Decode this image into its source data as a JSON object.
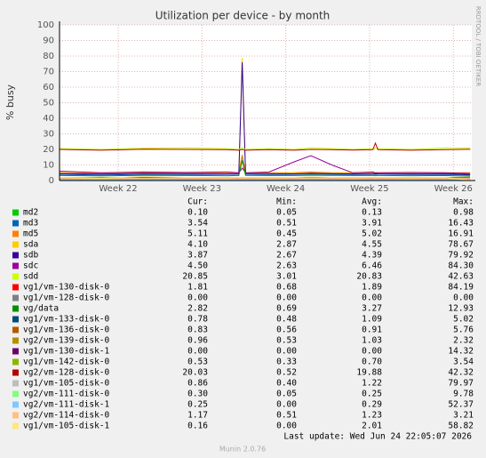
{
  "chart_data": {
    "type": "line",
    "title": "Utilization per device - by month",
    "y_label": "% busy",
    "side_text": "RRDTOOL / TOBI OETIKER",
    "footer": "Last update: Wed Jun 24 22:05:07 2026",
    "version": "Munin 2.0.76",
    "stat_headers": [
      "Cur:",
      "Min:",
      "Avg:",
      "Max:"
    ],
    "grid": true,
    "xlim": [
      21.3,
      26.22
    ],
    "xticks": [
      {
        "value": 22,
        "label": "Week 22"
      },
      {
        "value": 23,
        "label": "Week 23"
      },
      {
        "value": 24,
        "label": "Week 24"
      },
      {
        "value": 25,
        "label": "Week 25"
      },
      {
        "value": 26,
        "label": "Week 26"
      }
    ],
    "ylim": [
      0,
      100
    ],
    "yticks": [
      0,
      10,
      20,
      30,
      40,
      50,
      60,
      70,
      80,
      90,
      100
    ],
    "x": [
      21.3,
      21.8,
      22.3,
      22.8,
      23.3,
      23.44,
      23.48,
      23.52,
      23.8,
      24.1,
      24.3,
      24.55,
      24.8,
      25.04,
      25.07,
      25.1,
      25.5,
      25.9,
      26.2
    ],
    "series": [
      {
        "name": "md2",
        "color": "#00cc00",
        "stats": [
          "0.10",
          "0.05",
          "0.13",
          "0.98"
        ],
        "values": [
          0.1,
          0.1,
          0.15,
          0.1,
          0.1,
          0.1,
          0.9,
          0.1,
          0.1,
          0.15,
          0.2,
          0.1,
          0.1,
          0.1,
          0.15,
          0.1,
          0.1,
          0.1,
          0.1
        ]
      },
      {
        "name": "md3",
        "color": "#0066b3",
        "stats": [
          "3.54",
          "0.51",
          "3.91",
          "16.43"
        ],
        "values": [
          4,
          3.5,
          4,
          3.8,
          4,
          4,
          16,
          4,
          3.8,
          4,
          4.2,
          4,
          3.9,
          4,
          4,
          4,
          3.8,
          3.9,
          3.5
        ]
      },
      {
        "name": "md5",
        "color": "#ff8000",
        "stats": [
          "5.11",
          "0.45",
          "5.02",
          "16.91"
        ],
        "values": [
          5,
          4.8,
          5.2,
          5,
          5,
          5,
          16.5,
          5,
          4.9,
          5.1,
          5.5,
          5,
          5,
          5.2,
          5,
          5,
          4.9,
          5,
          5.1
        ]
      },
      {
        "name": "sda",
        "color": "#ffcc00",
        "stats": [
          "4.10",
          "2.87",
          "4.55",
          "78.67"
        ],
        "values": [
          4.5,
          4.3,
          4.6,
          4.5,
          4.4,
          4.5,
          78.67,
          4.6,
          4.5,
          4.5,
          4.8,
          4.6,
          4.5,
          4.5,
          4.6,
          4.5,
          4.4,
          4.5,
          4.1
        ]
      },
      {
        "name": "sdb",
        "color": "#330099",
        "stats": [
          "3.87",
          "2.67",
          "4.39",
          "79.92"
        ],
        "values": [
          4.4,
          4.2,
          4.5,
          4.4,
          4.3,
          4.4,
          76,
          4.5,
          4.4,
          4.3,
          4.6,
          4.4,
          4.3,
          4.4,
          4.5,
          4.4,
          4.3,
          4.4,
          3.87
        ]
      },
      {
        "name": "sdc",
        "color": "#990099",
        "stats": [
          "4.50",
          "2.63",
          "6.46",
          "84.30"
        ],
        "values": [
          6,
          5,
          5.5,
          5.2,
          5.5,
          5,
          8,
          5,
          5.5,
          12,
          16,
          10,
          5,
          5.5,
          5,
          5,
          5.2,
          5,
          4.5
        ]
      },
      {
        "name": "sdd",
        "color": "#ccff00",
        "stats": [
          "20.85",
          "3.01",
          "20.83",
          "42.63"
        ],
        "values": [
          20.5,
          20,
          20.8,
          21,
          20.5,
          20,
          21,
          20,
          20.5,
          20,
          21,
          20.5,
          20,
          20.5,
          21,
          20.5,
          20,
          21,
          20.85
        ]
      },
      {
        "name": "vg1/vm-130-disk-0",
        "color": "#ff0000",
        "stats": [
          "1.81",
          "0.68",
          "1.89",
          "84.19"
        ],
        "values": [
          1.9,
          1.8,
          2,
          1.9,
          1.8,
          1.9,
          2,
          1.9,
          1.8,
          1.9,
          2,
          1.9,
          1.8,
          1.9,
          2,
          1.9,
          1.8,
          1.9,
          1.81
        ]
      },
      {
        "name": "vg1/vm-128-disk-0",
        "color": "#808080",
        "stats": [
          "0.00",
          "0.00",
          "0.00",
          "0.00"
        ],
        "values": [
          0,
          0,
          0,
          0,
          0,
          0,
          0,
          0,
          0,
          0,
          0,
          0,
          0,
          0,
          0,
          0,
          0,
          0,
          0
        ]
      },
      {
        "name": "vg/data",
        "color": "#008f00",
        "stats": [
          "2.82",
          "0.69",
          "3.27",
          "12.93"
        ],
        "values": [
          3.2,
          3,
          3.3,
          3.2,
          3.1,
          3.2,
          12.9,
          3.3,
          3.2,
          3.2,
          3.4,
          3.3,
          3.2,
          3.2,
          3.3,
          3.2,
          3.1,
          3.2,
          2.82
        ]
      },
      {
        "name": "vg1/vm-133-disk-0",
        "color": "#00487d",
        "stats": [
          "0.78",
          "0.48",
          "1.09",
          "5.02"
        ],
        "values": [
          1.1,
          1,
          1.2,
          1.1,
          1,
          1.1,
          1.2,
          1.1,
          1,
          1.1,
          1.2,
          1.1,
          1,
          1.1,
          1.2,
          1.1,
          1,
          1.1,
          0.78
        ]
      },
      {
        "name": "vg1/vm-136-disk-0",
        "color": "#b35a00",
        "stats": [
          "0.83",
          "0.56",
          "0.91",
          "5.76"
        ],
        "values": [
          0.9,
          0.9,
          1,
          0.9,
          0.8,
          0.9,
          1,
          0.9,
          0.9,
          0.9,
          1,
          0.9,
          0.8,
          0.9,
          1,
          0.9,
          0.9,
          0.9,
          0.83
        ]
      },
      {
        "name": "vg2/vm-139-disk-0",
        "color": "#b38f00",
        "stats": [
          "0.96",
          "0.53",
          "1.03",
          "2.32"
        ],
        "values": [
          1,
          1,
          1.1,
          1,
          1,
          1,
          1.1,
          1,
          1,
          1,
          1.1,
          1,
          1,
          1,
          1.1,
          1,
          1,
          1,
          0.96
        ]
      },
      {
        "name": "vg1/vm-130-disk-1",
        "color": "#6b006b",
        "stats": [
          "0.00",
          "0.00",
          "0.00",
          "14.32"
        ],
        "values": [
          0,
          0,
          0,
          0,
          0,
          0,
          0,
          0,
          0,
          0,
          0,
          0,
          0,
          0,
          0,
          0,
          0,
          0,
          0
        ]
      },
      {
        "name": "vg1/vm-142-disk-0",
        "color": "#8fb300",
        "stats": [
          "0.53",
          "0.33",
          "0.70",
          "3.54"
        ],
        "values": [
          0.7,
          0.7,
          0.8,
          0.7,
          0.6,
          0.7,
          0.8,
          0.7,
          0.7,
          0.7,
          0.8,
          0.7,
          0.6,
          0.7,
          0.8,
          0.7,
          0.7,
          0.7,
          0.53
        ]
      },
      {
        "name": "vg2/vm-128-disk-0",
        "color": "#b30000",
        "stats": [
          "20.03",
          "0.52",
          "19.88",
          "42.32"
        ],
        "values": [
          20,
          19.5,
          20.2,
          20,
          19.8,
          19.5,
          20,
          19.5,
          19.8,
          19.5,
          20,
          19.8,
          19.6,
          19.8,
          24,
          19.8,
          19.5,
          19.9,
          20.03
        ]
      },
      {
        "name": "vg1/vm-105-disk-0",
        "color": "#bebebe",
        "stats": [
          "0.86",
          "0.40",
          "1.22",
          "79.97"
        ],
        "values": [
          1.2,
          1.1,
          1.3,
          1.2,
          1.1,
          1.2,
          1.3,
          1.2,
          1.1,
          1.2,
          1.3,
          1.2,
          1.1,
          1.2,
          1.3,
          1.2,
          1.1,
          1.2,
          0.86
        ]
      },
      {
        "name": "vg2/vm-111-disk-0",
        "color": "#80ff80",
        "stats": [
          "0.30",
          "0.05",
          "0.25",
          "9.78"
        ],
        "values": [
          0.25,
          0.2,
          0.3,
          0.25,
          0.2,
          0.25,
          0.3,
          0.25,
          0.2,
          0.25,
          0.3,
          0.25,
          0.2,
          0.25,
          0.3,
          0.25,
          0.2,
          0.25,
          0.3
        ]
      },
      {
        "name": "vg2/vm-111-disk-1",
        "color": "#80c9ff",
        "stats": [
          "0.25",
          "0.00",
          "0.29",
          "52.37"
        ],
        "values": [
          0.3,
          0.25,
          0.3,
          0.3,
          0.25,
          0.3,
          0.3,
          0.3,
          0.25,
          0.3,
          0.3,
          0.3,
          0.25,
          0.3,
          0.3,
          0.3,
          0.25,
          0.3,
          0.25
        ]
      },
      {
        "name": "vg2/vm-114-disk-0",
        "color": "#ffc080",
        "stats": [
          "1.17",
          "0.51",
          "1.23",
          "3.21"
        ],
        "values": [
          1.2,
          1.2,
          1.3,
          1.2,
          1.1,
          1.2,
          1.3,
          1.2,
          1.2,
          1.2,
          1.3,
          1.2,
          1.1,
          1.2,
          1.3,
          1.2,
          1.2,
          1.2,
          1.17
        ]
      },
      {
        "name": "vg1/vm-105-disk-1",
        "color": "#ffe680",
        "stats": [
          "0.16",
          "0.00",
          "2.01",
          "58.82"
        ],
        "values": [
          2,
          1.5,
          2.5,
          2,
          1.8,
          2,
          2.2,
          2,
          1.8,
          2,
          2.3,
          2,
          1.8,
          2,
          2.2,
          2,
          1.8,
          2,
          0.16
        ]
      }
    ]
  }
}
